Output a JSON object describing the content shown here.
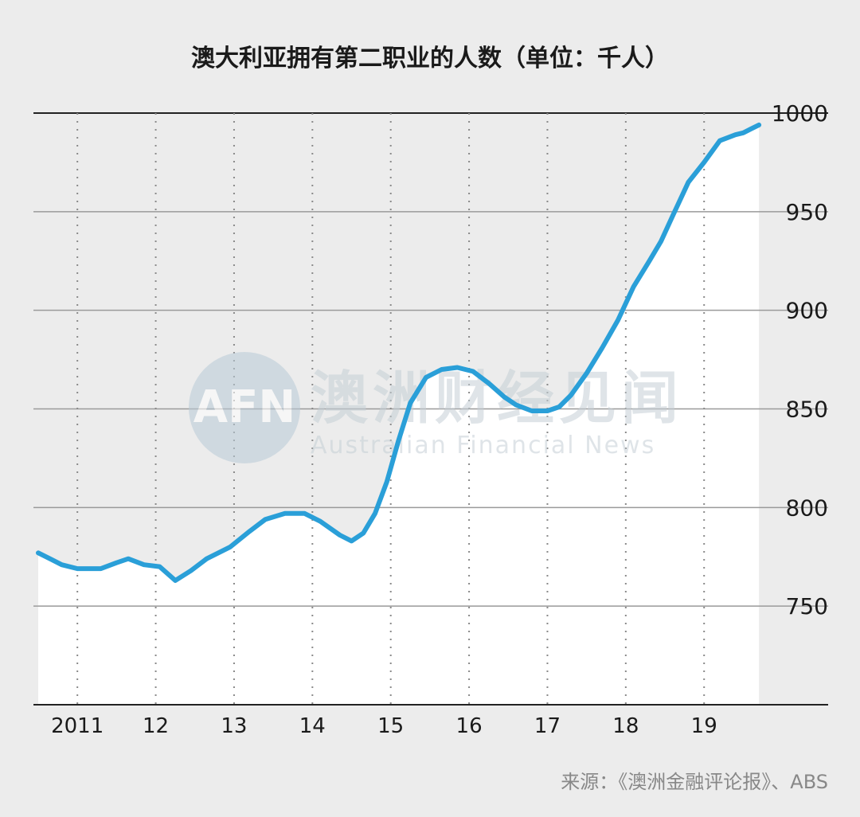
{
  "title": "澳大利亚拥有第二职业的人数（单位：千人）",
  "source": "来源：《澳洲金融评论报》、ABS",
  "watermark": {
    "logo": "AFN",
    "cn": "澳洲财经见闻",
    "en": "Australian Financial News"
  },
  "colors": {
    "background": "#ececec",
    "area_fill": "#ffffff",
    "line": "#2a9fd8",
    "grid": "#9a9a9a",
    "axis": "#222222"
  },
  "chart_data": {
    "type": "line",
    "title": "澳大利亚拥有第二职业的人数（单位：千人）",
    "xlabel": "",
    "ylabel": "",
    "ylim": [
      700,
      1000
    ],
    "yticks": [
      750,
      800,
      850,
      900,
      950,
      1000
    ],
    "ytick_labels": [
      "750",
      "800",
      "850",
      "900",
      "950",
      "1000"
    ],
    "xlim": [
      2010.0,
      2019.25
    ],
    "x_tick_positions": [
      2010.5,
      2011.5,
      2012.5,
      2013.5,
      2014.5,
      2015.5,
      2016.5,
      2017.5,
      2018.5
    ],
    "x_tick_labels": [
      "2011",
      "12",
      "13",
      "14",
      "15",
      "16",
      "17",
      "18",
      "19"
    ],
    "grid": true,
    "fill_below": true,
    "series": [
      {
        "x": [
          2010.0,
          2010.15,
          2010.3,
          2010.5,
          2010.8,
          2011.0,
          2011.15,
          2011.35,
          2011.55,
          2011.75,
          2011.95,
          2012.15,
          2012.45,
          2012.7,
          2012.9,
          2013.15,
          2013.4,
          2013.6,
          2013.85,
          2014.0,
          2014.15,
          2014.3,
          2014.45,
          2014.6,
          2014.75,
          2014.95,
          2015.15,
          2015.35,
          2015.55,
          2015.75,
          2015.95,
          2016.1,
          2016.3,
          2016.5,
          2016.65,
          2016.8,
          2017.0,
          2017.2,
          2017.4,
          2017.6,
          2017.8,
          2017.95,
          2018.1,
          2018.3,
          2018.5,
          2018.7,
          2018.9,
          2019.0,
          2019.1,
          2019.2
        ],
        "y": [
          777,
          774,
          771,
          769,
          769,
          772,
          774,
          771,
          770,
          763,
          768,
          774,
          780,
          788,
          794,
          797,
          797,
          793,
          786,
          783,
          787,
          797,
          813,
          834,
          853,
          866,
          870,
          871,
          869,
          863,
          856,
          852,
          849,
          849,
          851,
          857,
          868,
          881,
          895,
          912,
          925,
          935,
          948,
          965,
          975,
          986,
          989,
          990,
          992,
          994
        ]
      }
    ]
  }
}
